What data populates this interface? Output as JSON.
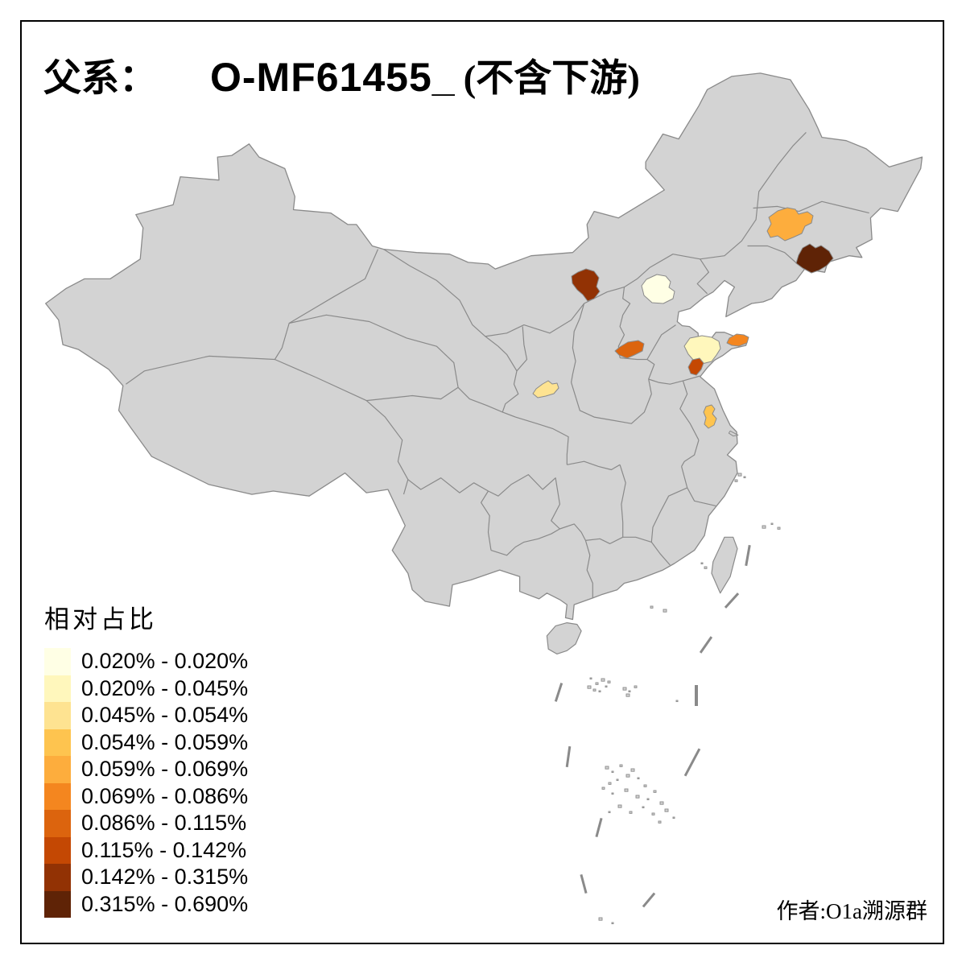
{
  "title": {
    "prefix": "父系：",
    "code": "O-MF61455_",
    "suffix": "(不含下游)"
  },
  "legend": {
    "title": "相对占比",
    "items": [
      {
        "label": "0.020% - 0.020%",
        "color": "#FFFFE5"
      },
      {
        "label": "0.020% - 0.045%",
        "color": "#FFF7BC"
      },
      {
        "label": "0.045% - 0.054%",
        "color": "#FEE391"
      },
      {
        "label": "0.054% - 0.059%",
        "color": "#FEC44F"
      },
      {
        "label": "0.059% - 0.069%",
        "color": "#FDAD3D"
      },
      {
        "label": "0.069% - 0.086%",
        "color": "#F4861F"
      },
      {
        "label": "0.086% - 0.115%",
        "color": "#DC640E"
      },
      {
        "label": "0.115% - 0.142%",
        "color": "#C44803"
      },
      {
        "label": "0.142% - 0.315%",
        "color": "#923204"
      },
      {
        "label": "0.315% - 0.690%",
        "color": "#5F2306"
      }
    ]
  },
  "attribution": "作者:O1a溯源群",
  "map": {
    "base_fill": "#D3D3D3",
    "border_color": "#8A8A8A",
    "background": "#FFFFFF",
    "frame_color": "#000000",
    "regions": [
      {
        "name": "beijing",
        "class_index": 0
      },
      {
        "name": "central-shandong",
        "class_index": 1
      },
      {
        "name": "guanzhong-shaanxi",
        "class_index": 2
      },
      {
        "name": "central-jiangsu",
        "class_index": 3
      },
      {
        "name": "changchun-jilin",
        "class_index": 4
      },
      {
        "name": "jiaodong-peninsula",
        "class_index": 5
      },
      {
        "name": "southeast-shanxi",
        "class_index": 6
      },
      {
        "name": "south-shandong",
        "class_index": 7
      },
      {
        "name": "north-shanxi",
        "class_index": 8
      },
      {
        "name": "southeast-jilin",
        "class_index": 9
      }
    ]
  }
}
